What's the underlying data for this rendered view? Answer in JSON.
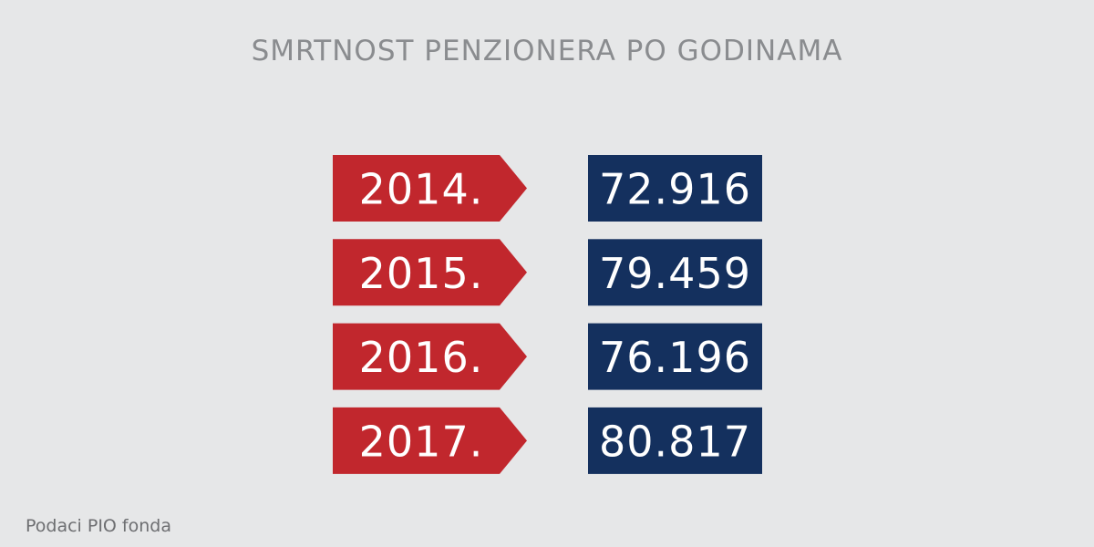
{
  "header": {
    "title": "SMRTNOST PENZIONERA PO GODINAMA"
  },
  "rows": [
    {
      "year": "2014.",
      "value": "72.916"
    },
    {
      "year": "2015.",
      "value": "79.459"
    },
    {
      "year": "2016.",
      "value": "76.196"
    },
    {
      "year": "2017.",
      "value": "80.817"
    }
  ],
  "footer": {
    "source": "Podaci PIO fonda"
  }
}
